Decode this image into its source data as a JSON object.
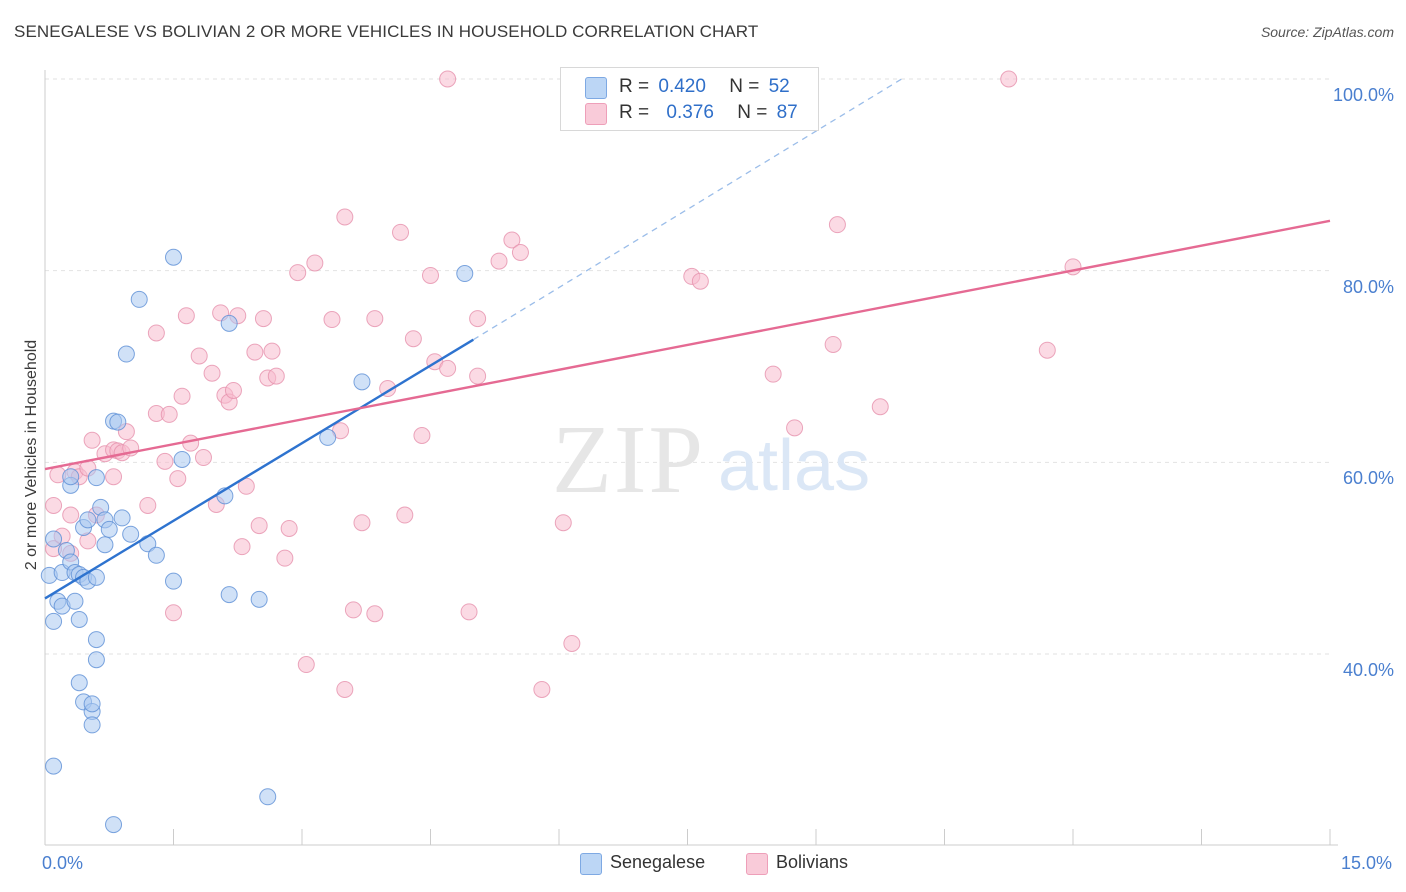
{
  "title": "SENEGALESE VS BOLIVIAN 2 OR MORE VEHICLES IN HOUSEHOLD CORRELATION CHART",
  "source": "Source: ZipAtlas.com",
  "watermark": {
    "zip": "ZIP",
    "atlas": "atlas"
  },
  "legend": {
    "rows": [
      {
        "r_label": "R =",
        "r_value": "0.420",
        "n_label": "N =",
        "n_value": "52",
        "color": "#9ec3f0"
      },
      {
        "r_label": "R =",
        "r_value": "0.376",
        "n_label": "N =",
        "n_value": "87",
        "color": "#f6b8cb"
      }
    ]
  },
  "bottom_legend": {
    "senegalese": "Senegalese",
    "bolivians": "Bolivians"
  },
  "colors": {
    "blue_fill": "#a9c8f0",
    "blue_stroke": "#5d8fd6",
    "blue_line": "#2e73cf",
    "pink_fill": "#f7bccd",
    "pink_stroke": "#e691ad",
    "pink_line": "#e56a93",
    "axis_text": "#4a7fcf",
    "grid": "#e2e2e2"
  },
  "chart_data": {
    "type": "scatter",
    "title": "SENEGALESE VS BOLIVIAN 2 OR MORE VEHICLES IN HOUSEHOLD CORRELATION CHART",
    "xlabel": "",
    "ylabel": "2 or more Vehicles in Household",
    "xlim": [
      0,
      15
    ],
    "ylim": [
      20,
      102
    ],
    "x_tick_labels": [
      "0.0%",
      "15.0%"
    ],
    "y_ticks": [
      40,
      60,
      80,
      100
    ],
    "y_tick_labels": [
      "40.0%",
      "60.0%",
      "80.0%",
      "100.0%"
    ],
    "series": [
      {
        "name": "Senegalese",
        "r": 0.42,
        "n": 52,
        "trend": {
          "x0": 0.0,
          "y0": 45.8,
          "x1": 5.0,
          "y1": 72.8,
          "dashed_to_x": 10.0,
          "dashed_to_y": 100.0
        },
        "points": [
          [
            0.05,
            48.2
          ],
          [
            0.1,
            52.0
          ],
          [
            0.15,
            45.5
          ],
          [
            0.1,
            43.4
          ],
          [
            0.2,
            48.5
          ],
          [
            0.25,
            50.8
          ],
          [
            0.3,
            49.6
          ],
          [
            0.2,
            45.0
          ],
          [
            0.3,
            57.6
          ],
          [
            0.3,
            58.5
          ],
          [
            0.35,
            45.5
          ],
          [
            0.35,
            48.5
          ],
          [
            0.4,
            48.3
          ],
          [
            0.45,
            48.0
          ],
          [
            0.5,
            47.6
          ],
          [
            0.45,
            53.2
          ],
          [
            0.5,
            54.0
          ],
          [
            0.6,
            48.0
          ],
          [
            0.6,
            58.4
          ],
          [
            0.65,
            55.3
          ],
          [
            0.7,
            54.0
          ],
          [
            0.7,
            51.4
          ],
          [
            0.75,
            53.0
          ],
          [
            0.8,
            64.3
          ],
          [
            0.85,
            64.2
          ],
          [
            0.9,
            54.2
          ],
          [
            0.95,
            71.3
          ],
          [
            1.0,
            52.5
          ],
          [
            1.1,
            77.0
          ],
          [
            1.2,
            51.5
          ],
          [
            1.3,
            50.3
          ],
          [
            1.5,
            47.6
          ],
          [
            1.5,
            81.4
          ],
          [
            1.6,
            60.3
          ],
          [
            2.15,
            74.5
          ],
          [
            2.1,
            56.5
          ],
          [
            2.15,
            46.2
          ],
          [
            2.5,
            45.7
          ],
          [
            3.3,
            62.6
          ],
          [
            3.7,
            68.4
          ],
          [
            4.9,
            79.7
          ],
          [
            0.6,
            41.5
          ],
          [
            0.6,
            39.4
          ],
          [
            0.4,
            37.0
          ],
          [
            0.45,
            35.0
          ],
          [
            0.55,
            34.0
          ],
          [
            0.55,
            32.6
          ],
          [
            0.1,
            28.3
          ],
          [
            0.55,
            34.8
          ],
          [
            2.6,
            25.1
          ],
          [
            0.8,
            22.2
          ],
          [
            0.4,
            43.6
          ]
        ]
      },
      {
        "name": "Bolivians",
        "r": 0.376,
        "n": 87,
        "trend": {
          "x0": 0.0,
          "y0": 59.3,
          "x1": 15.0,
          "y1": 85.2
        },
        "points": [
          [
            0.1,
            55.5
          ],
          [
            0.1,
            51.0
          ],
          [
            0.15,
            58.7
          ],
          [
            0.2,
            52.3
          ],
          [
            0.3,
            54.5
          ],
          [
            0.3,
            50.5
          ],
          [
            0.35,
            59.0
          ],
          [
            0.4,
            58.5
          ],
          [
            0.5,
            59.4
          ],
          [
            0.5,
            51.8
          ],
          [
            0.55,
            62.3
          ],
          [
            0.6,
            54.5
          ],
          [
            0.7,
            60.9
          ],
          [
            0.8,
            58.5
          ],
          [
            0.8,
            61.3
          ],
          [
            0.85,
            61.2
          ],
          [
            0.9,
            61.0
          ],
          [
            0.95,
            63.2
          ],
          [
            1.0,
            61.5
          ],
          [
            1.2,
            55.5
          ],
          [
            1.3,
            73.5
          ],
          [
            1.3,
            65.1
          ],
          [
            1.4,
            60.1
          ],
          [
            1.45,
            65.0
          ],
          [
            1.5,
            44.3
          ],
          [
            1.55,
            58.3
          ],
          [
            1.6,
            66.9
          ],
          [
            1.65,
            75.3
          ],
          [
            1.7,
            62.0
          ],
          [
            1.8,
            71.1
          ],
          [
            1.85,
            60.5
          ],
          [
            1.95,
            69.3
          ],
          [
            2.0,
            55.6
          ],
          [
            2.05,
            75.6
          ],
          [
            2.1,
            67.0
          ],
          [
            2.15,
            66.3
          ],
          [
            2.2,
            67.5
          ],
          [
            2.25,
            75.3
          ],
          [
            2.3,
            51.2
          ],
          [
            2.35,
            57.5
          ],
          [
            2.45,
            71.5
          ],
          [
            2.5,
            53.4
          ],
          [
            2.55,
            75.0
          ],
          [
            2.6,
            68.8
          ],
          [
            2.65,
            71.6
          ],
          [
            2.7,
            69.0
          ],
          [
            2.8,
            50.0
          ],
          [
            2.85,
            53.1
          ],
          [
            2.95,
            79.8
          ],
          [
            3.05,
            38.9
          ],
          [
            3.15,
            80.8
          ],
          [
            3.35,
            74.9
          ],
          [
            3.45,
            63.3
          ],
          [
            3.5,
            85.6
          ],
          [
            3.5,
            36.3
          ],
          [
            3.6,
            44.6
          ],
          [
            3.7,
            53.7
          ],
          [
            3.85,
            44.2
          ],
          [
            3.85,
            75.0
          ],
          [
            4.0,
            67.7
          ],
          [
            4.15,
            84.0
          ],
          [
            4.2,
            54.5
          ],
          [
            4.3,
            72.9
          ],
          [
            4.4,
            62.8
          ],
          [
            4.5,
            79.5
          ],
          [
            4.55,
            70.5
          ],
          [
            4.7,
            69.8
          ],
          [
            4.7,
            100.0
          ],
          [
            4.95,
            44.4
          ],
          [
            5.05,
            75.0
          ],
          [
            5.05,
            69.0
          ],
          [
            5.3,
            81.0
          ],
          [
            5.45,
            83.2
          ],
          [
            5.55,
            81.9
          ],
          [
            5.8,
            36.3
          ],
          [
            6.05,
            53.7
          ],
          [
            6.15,
            41.1
          ],
          [
            7.55,
            79.4
          ],
          [
            7.65,
            78.9
          ],
          [
            8.5,
            69.2
          ],
          [
            8.75,
            63.6
          ],
          [
            9.2,
            72.3
          ],
          [
            9.25,
            84.8
          ],
          [
            9.75,
            65.8
          ],
          [
            11.25,
            100.0
          ],
          [
            11.7,
            71.7
          ],
          [
            12.0,
            80.4
          ]
        ]
      }
    ]
  }
}
